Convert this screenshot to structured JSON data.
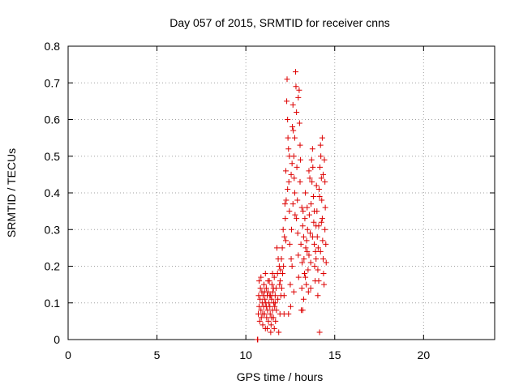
{
  "chart_data": {
    "type": "scatter",
    "title": "Day 057 of 2015, SRMTID for receiver cnns",
    "xlabel": "GPS time / hours",
    "ylabel": "SRMTID / TECUs",
    "xlim": [
      0,
      24
    ],
    "ylim": [
      0,
      0.8
    ],
    "xticks": [
      0,
      5,
      10,
      15,
      20
    ],
    "xtick_labels": [
      "0",
      "5",
      "10",
      "15",
      "20"
    ],
    "yticks": [
      0,
      0.1,
      0.2,
      0.3,
      0.4,
      0.5,
      0.6,
      0.7,
      0.8
    ],
    "ytick_labels": [
      "0",
      "0.1",
      "0.2",
      "0.3",
      "0.4",
      "0.5",
      "0.6",
      "0.7",
      "0.8"
    ],
    "grid": true,
    "marker": "+",
    "color": "#dd0000",
    "series": [
      {
        "name": "SRMTID",
        "points": [
          [
            10.65,
            0.0
          ],
          [
            10.67,
            0.0
          ],
          [
            10.7,
            0.07
          ],
          [
            10.72,
            0.12
          ],
          [
            10.75,
            0.09
          ],
          [
            10.78,
            0.05
          ],
          [
            10.8,
            0.11
          ],
          [
            10.82,
            0.14
          ],
          [
            10.85,
            0.08
          ],
          [
            10.87,
            0.06
          ],
          [
            10.9,
            0.13
          ],
          [
            10.92,
            0.1
          ],
          [
            10.95,
            0.04
          ],
          [
            10.97,
            0.12
          ],
          [
            11.0,
            0.09
          ],
          [
            11.02,
            0.15
          ],
          [
            11.05,
            0.07
          ],
          [
            11.07,
            0.11
          ],
          [
            11.1,
            0.03
          ],
          [
            11.12,
            0.1
          ],
          [
            11.15,
            0.14
          ],
          [
            11.17,
            0.06
          ],
          [
            11.2,
            0.12
          ],
          [
            11.22,
            0.08
          ],
          [
            11.25,
            0.13
          ],
          [
            11.27,
            0.05
          ],
          [
            11.3,
            0.1
          ],
          [
            11.32,
            0.16
          ],
          [
            11.35,
            0.09
          ],
          [
            11.37,
            0.07
          ],
          [
            11.4,
            0.12
          ],
          [
            11.42,
            0.04
          ],
          [
            11.45,
            0.11
          ],
          [
            11.47,
            0.15
          ],
          [
            11.5,
            0.08
          ],
          [
            11.52,
            0.13
          ],
          [
            11.55,
            0.06
          ],
          [
            11.57,
            0.1
          ],
          [
            11.6,
            0.17
          ],
          [
            11.62,
            0.09
          ],
          [
            11.65,
            0.12
          ],
          [
            11.67,
            0.05
          ],
          [
            11.7,
            0.14
          ],
          [
            11.72,
            0.08
          ],
          [
            10.75,
            0.16
          ],
          [
            10.85,
            0.17
          ],
          [
            10.95,
            0.07
          ],
          [
            11.05,
            0.13
          ],
          [
            11.15,
            0.09
          ],
          [
            11.25,
            0.16
          ],
          [
            11.35,
            0.12
          ],
          [
            11.45,
            0.06
          ],
          [
            11.55,
            0.14
          ],
          [
            11.65,
            0.1
          ],
          [
            11.8,
            0.11
          ],
          [
            11.85,
            0.02
          ],
          [
            11.9,
            0.15
          ],
          [
            11.92,
            0.07
          ],
          [
            11.95,
            0.19
          ],
          [
            11.97,
            0.12
          ],
          [
            11.1,
            0.18
          ],
          [
            11.2,
            0.03
          ],
          [
            11.4,
            0.02
          ],
          [
            11.5,
            0.18
          ],
          [
            11.6,
            0.03
          ],
          [
            11.75,
            0.25
          ],
          [
            11.78,
            0.18
          ],
          [
            11.82,
            0.22
          ],
          [
            11.88,
            0.2
          ],
          [
            11.93,
            0.16
          ],
          [
            12.0,
            0.22
          ],
          [
            12.02,
            0.14
          ],
          [
            12.05,
            0.25
          ],
          [
            12.07,
            0.18
          ],
          [
            12.1,
            0.3
          ],
          [
            12.12,
            0.2
          ],
          [
            12.15,
            0.12
          ],
          [
            12.17,
            0.28
          ],
          [
            12.2,
            0.37
          ],
          [
            12.22,
            0.33
          ],
          [
            12.25,
            0.46
          ],
          [
            12.27,
            0.38
          ],
          [
            12.3,
            0.65
          ],
          [
            12.32,
            0.71
          ],
          [
            12.35,
            0.6
          ],
          [
            12.37,
            0.55
          ],
          [
            12.4,
            0.52
          ],
          [
            12.42,
            0.43
          ],
          [
            12.45,
            0.35
          ],
          [
            12.47,
            0.26
          ],
          [
            12.5,
            0.15
          ],
          [
            12.52,
            0.09
          ],
          [
            12.55,
            0.22
          ],
          [
            12.57,
            0.3
          ],
          [
            12.6,
            0.48
          ],
          [
            12.62,
            0.58
          ],
          [
            12.65,
            0.64
          ],
          [
            12.67,
            0.57
          ],
          [
            12.7,
            0.5
          ],
          [
            12.72,
            0.44
          ],
          [
            12.75,
            0.4
          ],
          [
            12.77,
            0.34
          ],
          [
            12.8,
            0.73
          ],
          [
            12.82,
            0.69
          ],
          [
            12.85,
            0.62
          ],
          [
            12.87,
            0.47
          ],
          [
            12.9,
            0.38
          ],
          [
            12.92,
            0.29
          ],
          [
            12.95,
            0.23
          ],
          [
            12.97,
            0.17
          ],
          [
            12.25,
            0.27
          ],
          [
            12.35,
            0.41
          ],
          [
            12.45,
            0.5
          ],
          [
            12.55,
            0.45
          ],
          [
            12.65,
            0.37
          ],
          [
            12.75,
            0.55
          ],
          [
            12.85,
            0.33
          ],
          [
            12.95,
            0.66
          ],
          [
            12.15,
            0.07
          ],
          [
            12.4,
            0.07
          ],
          [
            12.6,
            0.2
          ],
          [
            12.7,
            0.13
          ],
          [
            13.0,
            0.68
          ],
          [
            13.02,
            0.59
          ],
          [
            13.05,
            0.53
          ],
          [
            13.07,
            0.49
          ],
          [
            13.1,
            0.26
          ],
          [
            13.12,
            0.08
          ],
          [
            13.15,
            0.14
          ],
          [
            13.17,
            0.21
          ],
          [
            13.2,
            0.31
          ],
          [
            13.22,
            0.35
          ],
          [
            13.25,
            0.28
          ],
          [
            13.27,
            0.22
          ],
          [
            13.3,
            0.18
          ],
          [
            13.32,
            0.33
          ],
          [
            13.35,
            0.4
          ],
          [
            13.37,
            0.25
          ],
          [
            13.4,
            0.15
          ],
          [
            13.42,
            0.27
          ],
          [
            13.45,
            0.36
          ],
          [
            13.47,
            0.3
          ],
          [
            13.5,
            0.19
          ],
          [
            13.52,
            0.13
          ],
          [
            13.55,
            0.23
          ],
          [
            13.57,
            0.34
          ],
          [
            13.6,
            0.44
          ],
          [
            13.62,
            0.29
          ],
          [
            13.65,
            0.21
          ],
          [
            13.67,
            0.37
          ],
          [
            13.7,
            0.49
          ],
          [
            13.72,
            0.43
          ],
          [
            13.75,
            0.52
          ],
          [
            13.77,
            0.47
          ],
          [
            13.8,
            0.39
          ],
          [
            13.82,
            0.32
          ],
          [
            13.85,
            0.26
          ],
          [
            13.87,
            0.2
          ],
          [
            13.9,
            0.16
          ],
          [
            13.92,
            0.24
          ],
          [
            13.95,
            0.31
          ],
          [
            13.97,
            0.42
          ],
          [
            13.05,
            0.43
          ],
          [
            13.15,
            0.36
          ],
          [
            13.25,
            0.11
          ],
          [
            13.35,
            0.17
          ],
          [
            13.45,
            0.24
          ],
          [
            13.55,
            0.46
          ],
          [
            13.65,
            0.14
          ],
          [
            13.75,
            0.28
          ],
          [
            13.85,
            0.35
          ],
          [
            13.95,
            0.22
          ],
          [
            13.2,
            0.08
          ],
          [
            14.0,
            0.35
          ],
          [
            14.02,
            0.28
          ],
          [
            14.05,
            0.19
          ],
          [
            14.07,
            0.25
          ],
          [
            14.1,
            0.31
          ],
          [
            14.12,
            0.41
          ],
          [
            14.15,
            0.02
          ],
          [
            14.17,
            0.47
          ],
          [
            14.2,
            0.53
          ],
          [
            14.22,
            0.5
          ],
          [
            14.25,
            0.44
          ],
          [
            14.27,
            0.38
          ],
          [
            14.3,
            0.33
          ],
          [
            14.32,
            0.27
          ],
          [
            14.35,
            0.22
          ],
          [
            14.37,
            0.18
          ],
          [
            14.4,
            0.15
          ],
          [
            14.42,
            0.49
          ],
          [
            14.45,
            0.43
          ],
          [
            14.47,
            0.36
          ],
          [
            14.5,
            0.26
          ],
          [
            14.52,
            0.21
          ],
          [
            14.05,
            0.12
          ],
          [
            14.15,
            0.39
          ],
          [
            14.25,
            0.32
          ],
          [
            14.35,
            0.45
          ],
          [
            14.45,
            0.3
          ],
          [
            14.3,
            0.55
          ],
          [
            14.2,
            0.24
          ],
          [
            14.1,
            0.16
          ]
        ]
      }
    ]
  }
}
